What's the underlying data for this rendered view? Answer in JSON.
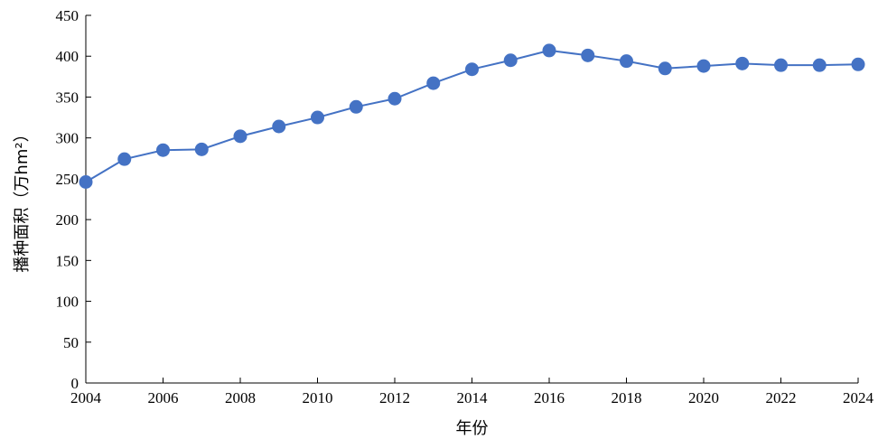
{
  "chart_data": {
    "type": "line",
    "xlabel": "年份",
    "ylabel": "播种面积（万hm²）",
    "xlim": [
      2004,
      2024
    ],
    "ylim": [
      0,
      450
    ],
    "xticks": [
      2004,
      2006,
      2008,
      2010,
      2012,
      2014,
      2016,
      2018,
      2020,
      2022,
      2024
    ],
    "yticks": [
      0,
      50,
      100,
      150,
      200,
      250,
      300,
      350,
      400,
      450
    ],
    "grid": false,
    "legend": "none",
    "color": "#4472c4",
    "x": [
      2004,
      2005,
      2006,
      2007,
      2008,
      2009,
      2010,
      2011,
      2012,
      2013,
      2014,
      2015,
      2016,
      2017,
      2018,
      2019,
      2020,
      2021,
      2022,
      2023,
      2024
    ],
    "series": [
      {
        "values": [
          246,
          274,
          285,
          286,
          302,
          314,
          325,
          338,
          348,
          367,
          384,
          395,
          407,
          401,
          394,
          385,
          388,
          391,
          389,
          389,
          390
        ]
      }
    ]
  }
}
